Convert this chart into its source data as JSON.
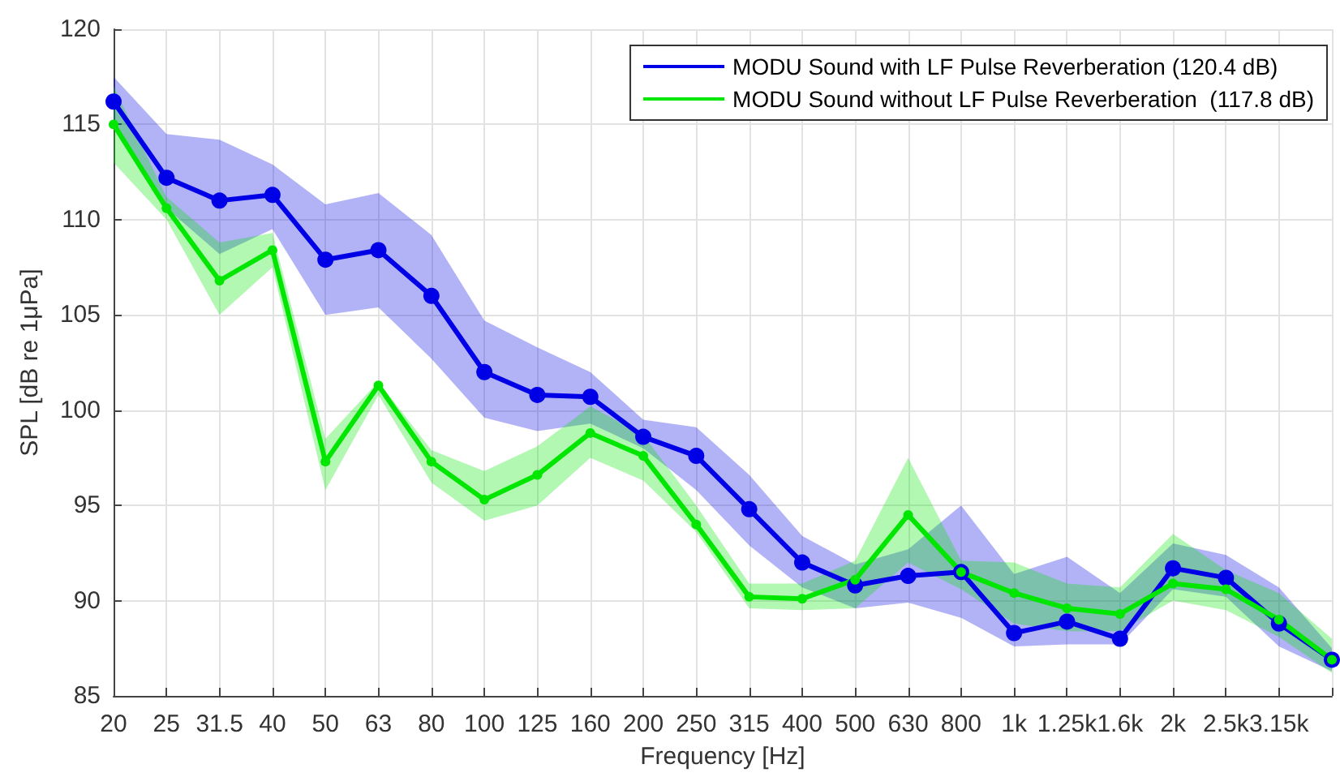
{
  "chart_data": {
    "type": "line",
    "xlabel": "Frequency [Hz]",
    "ylabel": "SPL [dB re 1μPa]",
    "categories": [
      "20",
      "25",
      "31.5",
      "40",
      "50",
      "63",
      "80",
      "100",
      "125",
      "160",
      "200",
      "250",
      "315",
      "400",
      "500",
      "630",
      "800",
      "1k",
      "1.25k",
      "1.6k",
      "2k",
      "2.5k",
      "3.15k",
      null
    ],
    "series": [
      {
        "name": "MODU Sound with LF Pulse Reverberation (120.4 dB)",
        "color": "#0000e6",
        "values": [
          116.2,
          112.2,
          111.0,
          111.3,
          107.9,
          108.4,
          106.0,
          102.0,
          100.8,
          100.7,
          98.6,
          97.6,
          94.8,
          92.0,
          90.8,
          91.3,
          91.5,
          88.3,
          88.9,
          88.0,
          91.7,
          91.2,
          88.8,
          86.9
        ],
        "upper": [
          117.5,
          114.5,
          114.2,
          112.9,
          110.8,
          111.4,
          109.2,
          104.7,
          103.3,
          102.0,
          99.5,
          99.1,
          96.6,
          93.4,
          91.9,
          92.7,
          95.0,
          91.4,
          92.3,
          90.4,
          93.0,
          92.4,
          90.7,
          87.5
        ],
        "lower": [
          115.0,
          110.6,
          108.2,
          109.5,
          105.0,
          105.4,
          102.7,
          99.6,
          98.9,
          99.3,
          98.0,
          95.8,
          92.9,
          90.7,
          89.6,
          89.9,
          89.1,
          87.6,
          87.7,
          87.7,
          90.6,
          90.2,
          87.6,
          86.3
        ]
      },
      {
        "name": "MODU Sound without LF Pulse Reverberation  (117.8 dB)",
        "color": "#00e600",
        "values": [
          115.0,
          110.6,
          106.8,
          108.4,
          97.3,
          101.3,
          97.3,
          95.3,
          96.6,
          98.8,
          97.6,
          94.0,
          90.2,
          90.1,
          91.1,
          94.5,
          91.5,
          90.4,
          89.6,
          89.3,
          90.9,
          90.6,
          89.0,
          86.9
        ],
        "upper": [
          117.0,
          111.2,
          108.8,
          109.3,
          98.5,
          101.5,
          97.9,
          96.8,
          98.1,
          100.2,
          98.7,
          95.0,
          90.9,
          90.9,
          92.1,
          97.5,
          92.1,
          92.0,
          90.9,
          90.7,
          93.5,
          91.6,
          90.4,
          88.0
        ],
        "lower": [
          113.0,
          110.0,
          105.0,
          107.5,
          95.8,
          100.8,
          96.2,
          94.2,
          95.0,
          97.5,
          96.3,
          93.6,
          89.6,
          89.5,
          89.6,
          92.0,
          90.6,
          88.8,
          88.4,
          88.4,
          90.0,
          89.5,
          88.1,
          86.2
        ]
      }
    ],
    "ylim": [
      85,
      120
    ],
    "yticks": [
      85,
      90,
      95,
      100,
      105,
      110,
      115,
      120
    ],
    "grid": true,
    "legend": "top right",
    "marker": "circle",
    "line_style": "solid"
  }
}
